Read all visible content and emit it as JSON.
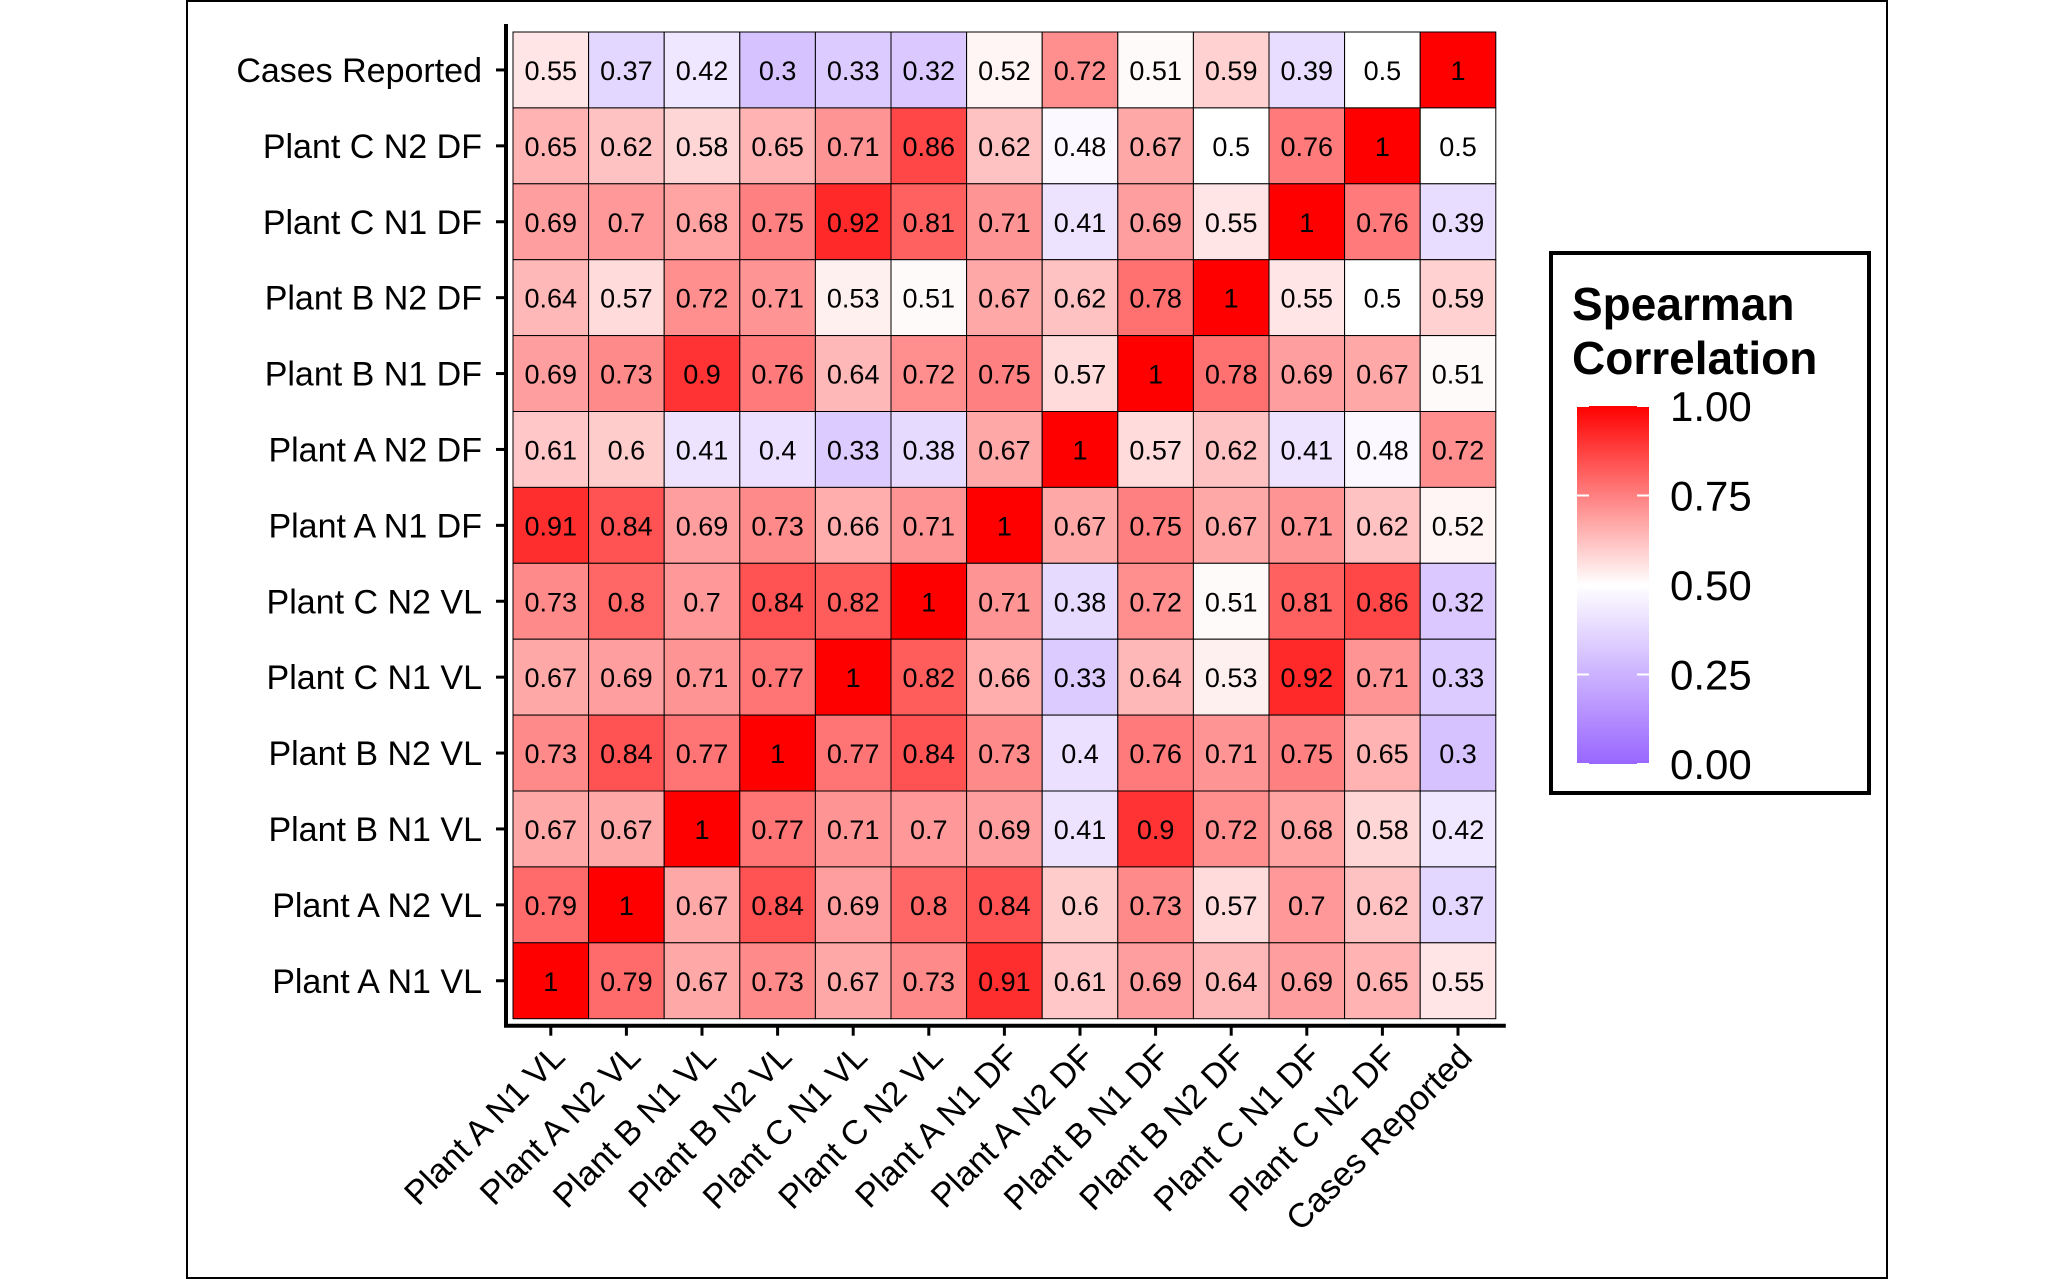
{
  "chart_data": {
    "type": "heatmap",
    "title": "",
    "xlabel": "",
    "ylabel": "",
    "x_categories": [
      "Plant A N1 VL",
      "Plant A N2 VL",
      "Plant B N1 VL",
      "Plant B N2 VL",
      "Plant C N1 VL",
      "Plant C N2 VL",
      "Plant A N1 DF",
      "Plant A N2 DF",
      "Plant B N1 DF",
      "Plant B N2 DF",
      "Plant C N1 DF",
      "Plant C N2 DF",
      "Cases Reported"
    ],
    "y_categories_top_to_bottom": [
      "Cases Reported",
      "Plant C N2 DF",
      "Plant C N1 DF",
      "Plant B N2 DF",
      "Plant B N1 DF",
      "Plant A N2 DF",
      "Plant A N1 DF",
      "Plant C N2 VL",
      "Plant C N1 VL",
      "Plant B N2 VL",
      "Plant B N1 VL",
      "Plant A N2 VL",
      "Plant A N1 VL"
    ],
    "rows": [
      {
        "label": "Cases Reported",
        "values": [
          0.55,
          0.37,
          0.42,
          0.3,
          0.33,
          0.32,
          0.52,
          0.72,
          0.51,
          0.59,
          0.39,
          0.5,
          1
        ]
      },
      {
        "label": "Plant C N2 DF",
        "values": [
          0.65,
          0.62,
          0.58,
          0.65,
          0.71,
          0.86,
          0.62,
          0.48,
          0.67,
          0.5,
          0.76,
          1,
          0.5
        ]
      },
      {
        "label": "Plant C N1 DF",
        "values": [
          0.69,
          0.7,
          0.68,
          0.75,
          0.92,
          0.81,
          0.71,
          0.41,
          0.69,
          0.55,
          1,
          0.76,
          0.39
        ]
      },
      {
        "label": "Plant B N2 DF",
        "values": [
          0.64,
          0.57,
          0.72,
          0.71,
          0.53,
          0.51,
          0.67,
          0.62,
          0.78,
          1,
          0.55,
          0.5,
          0.59
        ]
      },
      {
        "label": "Plant B N1 DF",
        "values": [
          0.69,
          0.73,
          0.9,
          0.76,
          0.64,
          0.72,
          0.75,
          0.57,
          1,
          0.78,
          0.69,
          0.67,
          0.51
        ]
      },
      {
        "label": "Plant A N2 DF",
        "values": [
          0.61,
          0.6,
          0.41,
          0.4,
          0.33,
          0.38,
          0.67,
          1,
          0.57,
          0.62,
          0.41,
          0.48,
          0.72
        ]
      },
      {
        "label": "Plant A N1 DF",
        "values": [
          0.91,
          0.84,
          0.69,
          0.73,
          0.66,
          0.71,
          1,
          0.67,
          0.75,
          0.67,
          0.71,
          0.62,
          0.52
        ]
      },
      {
        "label": "Plant C N2 VL",
        "values": [
          0.73,
          0.8,
          0.7,
          0.84,
          0.82,
          1,
          0.71,
          0.38,
          0.72,
          0.51,
          0.81,
          0.86,
          0.32
        ]
      },
      {
        "label": "Plant C N1 VL",
        "values": [
          0.67,
          0.69,
          0.71,
          0.77,
          1,
          0.82,
          0.66,
          0.33,
          0.64,
          0.53,
          0.92,
          0.71,
          0.33
        ]
      },
      {
        "label": "Plant B N2 VL",
        "values": [
          0.73,
          0.84,
          0.77,
          1,
          0.77,
          0.84,
          0.73,
          0.4,
          0.76,
          0.71,
          0.75,
          0.65,
          0.3
        ]
      },
      {
        "label": "Plant B N1 VL",
        "values": [
          0.67,
          0.67,
          1,
          0.77,
          0.71,
          0.7,
          0.69,
          0.41,
          0.9,
          0.72,
          0.68,
          0.58,
          0.42
        ]
      },
      {
        "label": "Plant A N2 VL",
        "values": [
          0.79,
          1,
          0.67,
          0.84,
          0.69,
          0.8,
          0.84,
          0.6,
          0.73,
          0.57,
          0.7,
          0.62,
          0.37
        ]
      },
      {
        "label": "Plant A N1 VL",
        "values": [
          1,
          0.79,
          0.67,
          0.73,
          0.67,
          0.73,
          0.91,
          0.61,
          0.69,
          0.64,
          0.69,
          0.65,
          0.55
        ]
      }
    ],
    "color_scale": {
      "low": "#9966FF",
      "mid": "#FFFFFF",
      "high": "#FF0000",
      "limits": [
        0,
        1
      ],
      "midpoint": 0.5
    },
    "legend": {
      "title_lines": [
        "Spearman",
        "Correlation"
      ],
      "ticks": [
        "1.00",
        "0.75",
        "0.50",
        "0.25",
        "0.00"
      ],
      "tick_values": [
        1,
        0.75,
        0.5,
        0.25,
        0
      ],
      "placement": "right"
    },
    "grid": false
  }
}
